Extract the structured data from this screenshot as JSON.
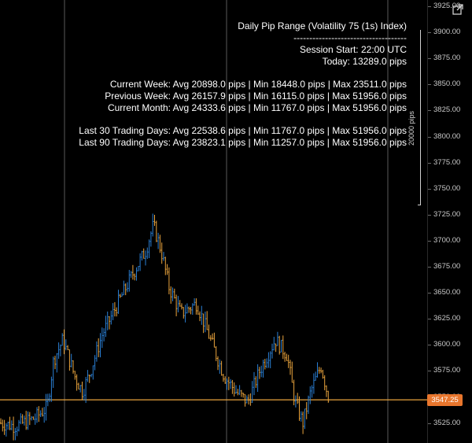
{
  "info_panel": {
    "title": "Daily Pip Range (Volatility 75 (1s) Index)",
    "separator": "------------------------------------",
    "session_start": "Session Start: 22:00 UTC",
    "today": "Today: 13289.0 pips",
    "current_week": "Current Week: Avg 20898.0 pips | Min 18448.0 pips | Max 23511.0 pips",
    "previous_week": "Previous Week: Avg 26157.9 pips | Min 16115.0 pips | Max 51956.0 pips",
    "current_month": "Current Month: Avg 24333.6 pips | Min 11767.0 pips | Max 51956.0 pips",
    "last_30": "Last 30 Trading Days: Avg 22538.6 pips | Min 11767.0 pips | Max 51956.0 pips",
    "last_90": "Last 90 Trading Days: Avg 23823.1 pips | Min 11257.0 pips | Max 51956.0 pips"
  },
  "scale_label": "20000 pips",
  "price_axis": {
    "ticks": [
      "3925.00",
      "3900.00",
      "3875.00",
      "3850.00",
      "3825.00",
      "3800.00",
      "3775.00",
      "3750.00",
      "3725.00",
      "3700.00",
      "3675.00",
      "3650.00",
      "3625.00",
      "3600.00",
      "3575.00",
      "3550.00",
      "3525.00"
    ],
    "current_price": "3547.25"
  },
  "colors": {
    "up": "#2a7fd4",
    "down": "#e8a33d",
    "price_line": "#e8a33d",
    "current_price_bg": "#e8762d",
    "session_line": "#5a5a5a"
  },
  "icons": {
    "popout": "popout-icon"
  }
}
